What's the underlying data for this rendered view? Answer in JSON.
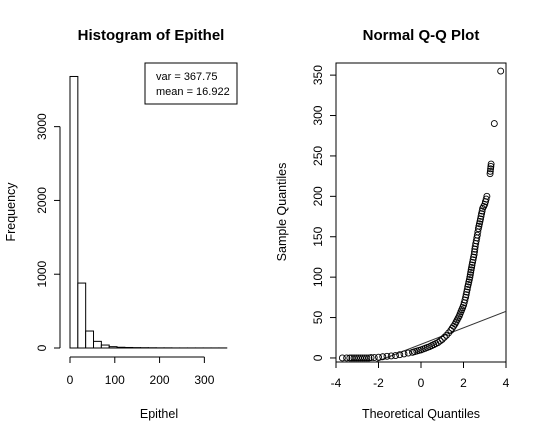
{
  "chart_data": [
    {
      "type": "bar",
      "title": "Histogram of Epithel",
      "xlabel": "Epithel",
      "ylabel": "Frequency",
      "bin_width": 17.5,
      "bin_starts": [
        0,
        17.5,
        35,
        52.5,
        70,
        87.5,
        105,
        122.5,
        140,
        157.5,
        175,
        192.5,
        210,
        227.5,
        245,
        262.5,
        280,
        297.5,
        315,
        332.5
      ],
      "values": [
        3680,
        880,
        230,
        90,
        40,
        18,
        10,
        7,
        5,
        4,
        3,
        2,
        2,
        1,
        1,
        1,
        1,
        1,
        1,
        1
      ],
      "xlim": [
        0,
        355
      ],
      "ylim": [
        0,
        3700
      ],
      "x_ticks": [
        "0",
        "100",
        "200",
        "300"
      ],
      "y_ticks": [
        "0",
        "1000",
        "2000",
        "3000"
      ],
      "grid": false,
      "legend": {
        "placement": "top-right",
        "entries": [
          "var = 367.75",
          "mean = 16.922"
        ]
      }
    },
    {
      "type": "scatter",
      "title": "Normal Q-Q Plot",
      "xlabel": "Theoretical Quantiles",
      "ylabel": "Sample Quantiles",
      "xlim": [
        -4,
        4
      ],
      "ylim": [
        -5,
        365
      ],
      "x_ticks": [
        "-4",
        "-2",
        "0",
        "2",
        "4"
      ],
      "y_ticks": [
        "0",
        "50",
        "100",
        "150",
        "200",
        "250",
        "300",
        "350"
      ],
      "grid": false,
      "points": [
        [
          -3.7,
          0
        ],
        [
          -3.5,
          0
        ],
        [
          -3.35,
          0
        ],
        [
          -3.25,
          0
        ],
        [
          -3.15,
          0
        ],
        [
          -3.05,
          0
        ],
        [
          -2.95,
          0
        ],
        [
          -2.85,
          0
        ],
        [
          -2.75,
          0
        ],
        [
          -2.65,
          0
        ],
        [
          -2.55,
          0
        ],
        [
          -2.45,
          0
        ],
        [
          -2.35,
          0.5
        ],
        [
          -2.2,
          0.5
        ],
        [
          -2.0,
          1
        ],
        [
          -1.8,
          1.5
        ],
        [
          -1.6,
          2
        ],
        [
          -1.4,
          2.5
        ],
        [
          -1.2,
          3
        ],
        [
          -1.0,
          4
        ],
        [
          -0.8,
          5
        ],
        [
          -0.6,
          6
        ],
        [
          -0.4,
          7
        ],
        [
          -0.2,
          8.5
        ],
        [
          0,
          10
        ],
        [
          0.2,
          12
        ],
        [
          0.4,
          14
        ],
        [
          0.6,
          16.5
        ],
        [
          0.8,
          19
        ],
        [
          1.0,
          23
        ],
        [
          1.2,
          28
        ],
        [
          1.4,
          34
        ],
        [
          1.6,
          42
        ],
        [
          1.8,
          52
        ],
        [
          2.0,
          65
        ],
        [
          2.1,
          75
        ],
        [
          2.2,
          88
        ],
        [
          2.3,
          100
        ],
        [
          2.4,
          115
        ],
        [
          2.5,
          128
        ],
        [
          2.55,
          138
        ],
        [
          2.6,
          145
        ],
        [
          2.65,
          152
        ],
        [
          2.7,
          160
        ],
        [
          2.75,
          166
        ],
        [
          2.8,
          172
        ],
        [
          2.9,
          185
        ],
        [
          3.0,
          190
        ],
        [
          3.1,
          200
        ],
        [
          3.25,
          228
        ],
        [
          3.3,
          240
        ],
        [
          3.45,
          290
        ],
        [
          3.75,
          355
        ]
      ],
      "reference_line": {
        "intercept": 16.922,
        "slope": 10.2
      }
    }
  ]
}
